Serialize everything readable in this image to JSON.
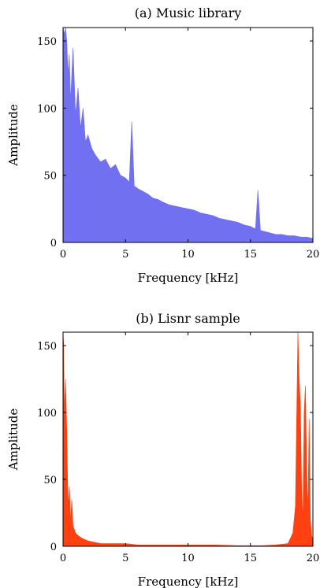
{
  "chart_data": [
    {
      "type": "area",
      "title": "(a) Music library",
      "xlabel": "Frequency [kHz]",
      "ylabel": "Amplitude",
      "xlim": [
        0,
        20
      ],
      "ylim": [
        0,
        160
      ],
      "xticks": [
        0,
        5,
        10,
        15,
        20
      ],
      "yticks": [
        0,
        50,
        100,
        150
      ],
      "grid": false,
      "color": "#7070f0",
      "x": [
        0,
        0.1,
        0.2,
        0.3,
        0.4,
        0.5,
        0.6,
        0.8,
        1.0,
        1.2,
        1.4,
        1.6,
        1.8,
        2.0,
        2.3,
        2.6,
        3.0,
        3.4,
        3.8,
        4.2,
        4.6,
        5.0,
        5.3,
        5.5,
        5.7,
        6.0,
        6.4,
        6.8,
        7.2,
        7.6,
        8.0,
        8.5,
        9.0,
        9.5,
        10.0,
        10.5,
        11.0,
        11.5,
        12.0,
        12.5,
        13.0,
        13.5,
        14.0,
        14.5,
        15.0,
        15.4,
        15.6,
        15.8,
        16.2,
        16.6,
        17.0,
        17.5,
        18.0,
        18.5,
        19.0,
        19.5,
        20.0
      ],
      "values": [
        160,
        155,
        160,
        150,
        125,
        140,
        105,
        145,
        95,
        115,
        85,
        100,
        75,
        80,
        70,
        65,
        60,
        62,
        55,
        58,
        50,
        48,
        45,
        90,
        42,
        40,
        38,
        36,
        33,
        32,
        30,
        28,
        27,
        26,
        25,
        24,
        22,
        21,
        20,
        18,
        17,
        16,
        15,
        13,
        12,
        10,
        39,
        9,
        8,
        7,
        6,
        6,
        5,
        5,
        4,
        4,
        3
      ]
    },
    {
      "type": "area",
      "title": "(b) Lisnr sample",
      "xlabel": "Frequency [kHz]",
      "ylabel": "Amplitude",
      "xlim": [
        0,
        20
      ],
      "ylim": [
        0,
        160
      ],
      "xticks": [
        0,
        5,
        10,
        15,
        20
      ],
      "yticks": [
        0,
        50,
        100,
        150
      ],
      "grid": false,
      "color": "#ff4010",
      "x": [
        0,
        0.05,
        0.1,
        0.2,
        0.3,
        0.4,
        0.5,
        0.6,
        0.7,
        0.8,
        1.0,
        1.2,
        1.5,
        2.0,
        2.5,
        3.0,
        4.0,
        5.0,
        6.0,
        8.0,
        10.0,
        12.0,
        14.0,
        16.0,
        17.0,
        18.0,
        18.4,
        18.6,
        18.8,
        18.9,
        19.0,
        19.1,
        19.2,
        19.3,
        19.4,
        19.5,
        19.6,
        19.7,
        19.8,
        19.9,
        20.0
      ],
      "values": [
        160,
        150,
        100,
        125,
        85,
        30,
        45,
        18,
        35,
        15,
        10,
        8,
        6,
        4,
        3,
        2,
        2,
        2,
        1,
        1,
        1,
        1,
        0.5,
        0.5,
        1,
        2,
        10,
        30,
        160,
        125,
        105,
        40,
        20,
        100,
        120,
        60,
        25,
        95,
        20,
        8,
        5
      ]
    }
  ]
}
